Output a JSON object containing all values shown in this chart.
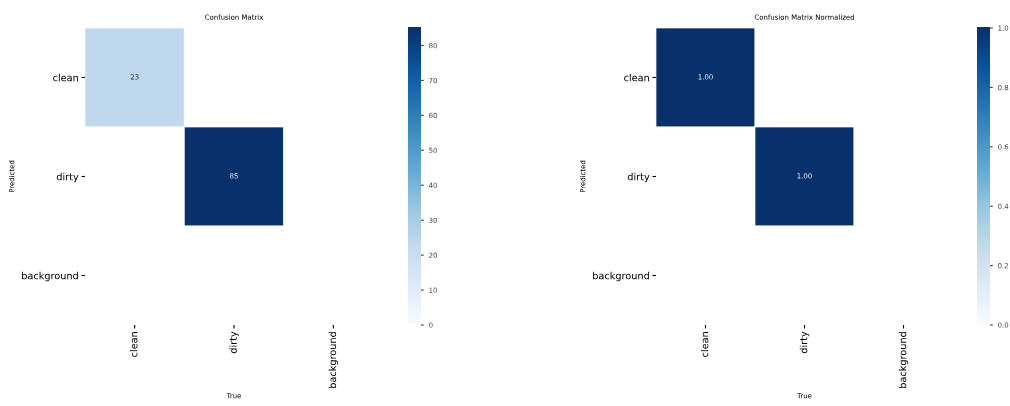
{
  "chart_data": [
    {
      "type": "heatmap",
      "title": "Confusion Matrix",
      "xlabel": "True",
      "ylabel": "Predicted",
      "categories": [
        "clean",
        "dirty",
        "background"
      ],
      "y_categories": [
        "clean",
        "dirty",
        "background"
      ],
      "cells": [
        [
          23,
          null,
          null
        ],
        [
          null,
          85,
          null
        ],
        [
          null,
          null,
          null
        ]
      ],
      "clim": [
        0,
        85
      ],
      "cticks": [
        0,
        10,
        20,
        30,
        40,
        50,
        60,
        70,
        80
      ],
      "data_labels": true
    },
    {
      "type": "heatmap",
      "title": "Confusion Matrix Normalized",
      "xlabel": "True",
      "ylabel": "Predicted",
      "categories": [
        "clean",
        "dirty",
        "background"
      ],
      "y_categories": [
        "clean",
        "dirty",
        "background"
      ],
      "cells": [
        [
          1.0,
          null,
          null
        ],
        [
          null,
          1.0,
          null
        ],
        [
          null,
          null,
          null
        ]
      ],
      "cell_labels": [
        [
          "1.00",
          null,
          null
        ],
        [
          null,
          "1.00",
          null
        ],
        [
          null,
          null,
          null
        ]
      ],
      "clim": [
        0,
        1.0
      ],
      "cticks": [
        {
          "value": 0,
          "label": "0.0"
        },
        {
          "value": 0.2,
          "label": "0.2"
        },
        {
          "value": 0.4,
          "label": "0.4"
        },
        {
          "value": 0.6,
          "label": "0.6"
        },
        {
          "value": 0.8,
          "label": "0.8"
        },
        {
          "value": 1.0,
          "label": "1.0"
        }
      ]
    }
  ]
}
